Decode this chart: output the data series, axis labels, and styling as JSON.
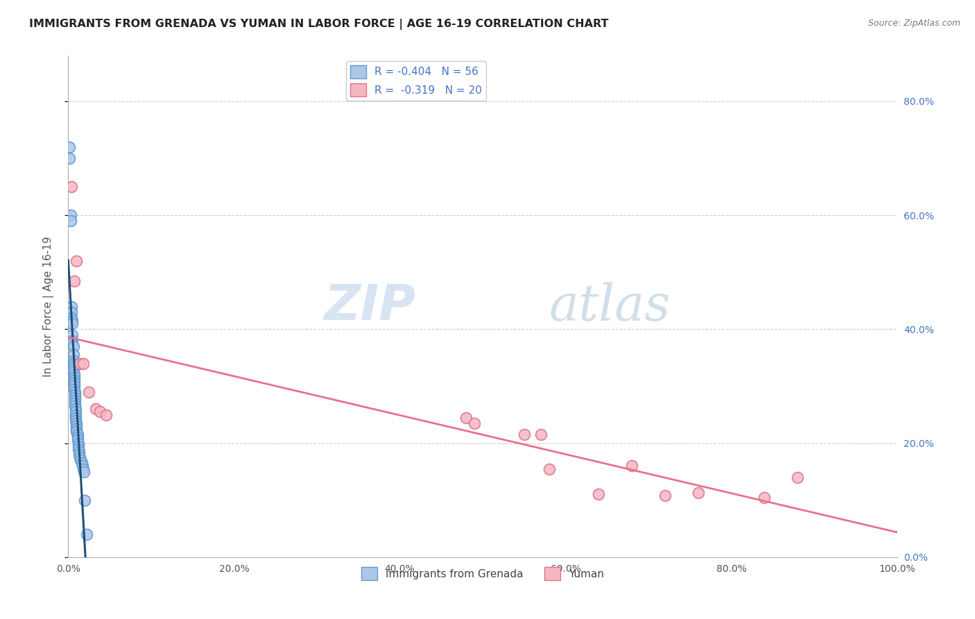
{
  "title": "IMMIGRANTS FROM GRENADA VS YUMAN IN LABOR FORCE | AGE 16-19 CORRELATION CHART",
  "source": "Source: ZipAtlas.com",
  "ylabel": "In Labor Force | Age 16-19",
  "xlim": [
    0.0,
    1.0
  ],
  "ylim": [
    0.0,
    0.88
  ],
  "grenada_color": "#aec6e8",
  "grenada_edge": "#5b9bd5",
  "yuman_color": "#f4b8c1",
  "yuman_edge": "#e07090",
  "trendline_grenada_color": "#1f4e79",
  "trendline_yuman_color": "#e87090",
  "legend_grenada_label": "Immigrants from Grenada",
  "legend_yuman_label": "Yuman",
  "R_grenada": "-0.404",
  "N_grenada": "56",
  "R_yuman": "-0.319",
  "N_yuman": "20",
  "grenada_x": [
    0.001,
    0.001,
    0.003,
    0.003,
    0.004,
    0.004,
    0.004,
    0.005,
    0.005,
    0.005,
    0.005,
    0.005,
    0.006,
    0.006,
    0.006,
    0.006,
    0.006,
    0.006,
    0.006,
    0.007,
    0.007,
    0.007,
    0.007,
    0.007,
    0.007,
    0.008,
    0.008,
    0.008,
    0.008,
    0.008,
    0.008,
    0.009,
    0.009,
    0.009,
    0.009,
    0.009,
    0.01,
    0.01,
    0.01,
    0.01,
    0.011,
    0.011,
    0.011,
    0.012,
    0.012,
    0.012,
    0.013,
    0.013,
    0.014,
    0.015,
    0.016,
    0.017,
    0.018,
    0.019,
    0.02,
    0.022
  ],
  "grenada_y": [
    0.72,
    0.7,
    0.6,
    0.59,
    0.44,
    0.43,
    0.42,
    0.415,
    0.41,
    0.39,
    0.38,
    0.375,
    0.37,
    0.355,
    0.345,
    0.34,
    0.335,
    0.33,
    0.325,
    0.32,
    0.315,
    0.31,
    0.305,
    0.3,
    0.295,
    0.29,
    0.285,
    0.28,
    0.275,
    0.27,
    0.265,
    0.26,
    0.255,
    0.25,
    0.245,
    0.24,
    0.235,
    0.23,
    0.225,
    0.22,
    0.215,
    0.21,
    0.205,
    0.2,
    0.195,
    0.19,
    0.185,
    0.18,
    0.175,
    0.17,
    0.165,
    0.16,
    0.155,
    0.15,
    0.1,
    0.04
  ],
  "yuman_x": [
    0.004,
    0.007,
    0.01,
    0.014,
    0.018,
    0.025,
    0.033,
    0.038,
    0.046,
    0.48,
    0.49,
    0.55,
    0.57,
    0.58,
    0.64,
    0.68,
    0.72,
    0.76,
    0.84,
    0.88
  ],
  "yuman_y": [
    0.65,
    0.485,
    0.52,
    0.34,
    0.34,
    0.29,
    0.26,
    0.255,
    0.25,
    0.245,
    0.235,
    0.215,
    0.215,
    0.155,
    0.11,
    0.16,
    0.108,
    0.113,
    0.105,
    0.14
  ],
  "watermark_zip": "ZIP",
  "watermark_atlas": "atlas",
  "background_color": "#ffffff",
  "grid_color": "#cccccc"
}
